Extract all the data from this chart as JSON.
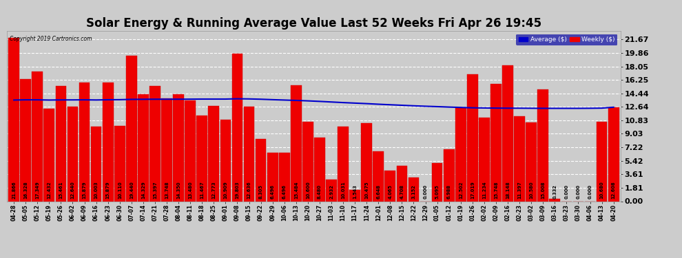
{
  "title": "Solar Energy & Running Average Value Last 52 Weeks Fri Apr 26 19:45",
  "copyright": "Copyright 2019 Cartronics.com",
  "legend_avg": "Average ($)",
  "legend_weekly": "Weekly ($)",
  "categories": [
    "04-28",
    "05-05",
    "05-12",
    "05-19",
    "05-26",
    "06-02",
    "06-09",
    "06-16",
    "06-23",
    "06-30",
    "07-07",
    "07-14",
    "07-21",
    "07-28",
    "08-04",
    "08-11",
    "08-18",
    "08-25",
    "09-01",
    "09-08",
    "09-15",
    "09-22",
    "09-29",
    "10-06",
    "10-13",
    "10-20",
    "10-27",
    "11-03",
    "11-10",
    "11-17",
    "11-24",
    "12-01",
    "12-08",
    "12-15",
    "12-22",
    "12-29",
    "01-05",
    "01-12",
    "01-19",
    "01-26",
    "02-02",
    "02-09",
    "02-16",
    "02-23",
    "03-02",
    "03-09",
    "03-16",
    "03-23",
    "03-30",
    "04-06",
    "04-13",
    "04-20"
  ],
  "weekly_values": [
    21.866,
    16.328,
    17.349,
    12.432,
    15.461,
    12.64,
    15.879,
    10.003,
    15.879,
    10.11,
    19.44,
    14.329,
    15.397,
    13.748,
    14.35,
    13.48,
    11.467,
    12.773,
    10.909,
    19.803,
    12.636,
    8.305,
    6.496,
    6.496,
    15.484,
    10.6,
    8.48,
    2.932,
    10.031,
    1.543,
    10.475,
    6.648,
    4.065,
    4.708,
    3.152,
    0.0,
    5.095,
    6.988,
    12.502,
    17.019,
    11.234,
    15.748,
    18.148,
    11.397,
    10.58,
    15.008,
    0.332,
    0.0,
    0.0,
    0.0,
    10.68,
    12.608
  ],
  "avg_values": [
    13.55,
    13.58,
    13.58,
    13.55,
    13.57,
    13.57,
    13.58,
    13.56,
    13.59,
    13.6,
    13.64,
    13.65,
    13.66,
    13.66,
    13.66,
    13.67,
    13.68,
    13.68,
    13.68,
    13.72,
    13.7,
    13.66,
    13.6,
    13.55,
    13.5,
    13.44,
    13.37,
    13.29,
    13.21,
    13.14,
    13.07,
    12.99,
    12.92,
    12.85,
    12.78,
    12.72,
    12.67,
    12.61,
    12.56,
    12.51,
    12.49,
    12.47,
    12.46,
    12.46,
    12.45,
    12.44,
    12.44,
    12.44,
    12.44,
    12.45,
    12.47,
    12.59
  ],
  "bar_color": "#ee0000",
  "avg_line_color": "#0000cc",
  "background_color": "#cccccc",
  "plot_bg_color": "#cccccc",
  "grid_color": "#ffffff",
  "yticks": [
    0.0,
    1.81,
    3.61,
    5.42,
    7.22,
    9.03,
    10.83,
    12.64,
    14.44,
    16.25,
    18.05,
    19.86,
    21.67
  ],
  "ylim": [
    0.0,
    22.8
  ],
  "title_fontsize": 12,
  "label_fontsize": 5.5,
  "value_fontsize": 4.8,
  "ytick_fontsize": 8
}
